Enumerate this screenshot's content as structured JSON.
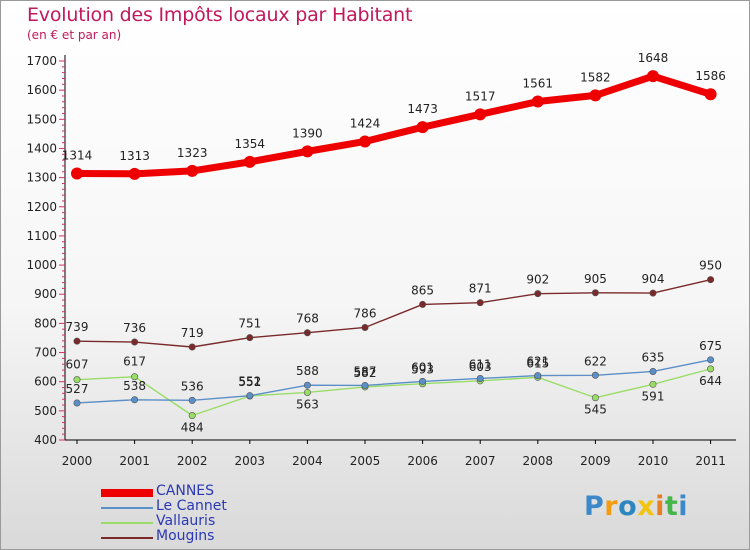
{
  "chart_data": {
    "type": "line",
    "title": "Evolution des Impôts locaux par Habitant",
    "subtitle": "(en € et par an)",
    "xlabel": "",
    "ylabel": "",
    "ylim": [
      400,
      1700
    ],
    "yticks": [
      400,
      500,
      600,
      700,
      800,
      900,
      1000,
      1100,
      1200,
      1300,
      1400,
      1500,
      1600,
      1700
    ],
    "categories": [
      "2000",
      "2001",
      "2002",
      "2003",
      "2004",
      "2005",
      "2006",
      "2007",
      "2008",
      "2009",
      "2010",
      "2011"
    ],
    "series": [
      {
        "name": "CANNES",
        "color": "#ee0000",
        "values": [
          1314,
          1313,
          1323,
          1354,
          1390,
          1424,
          1473,
          1517,
          1561,
          1582,
          1648,
          1586
        ]
      },
      {
        "name": "Le Cannet",
        "color": "#5b8fc8",
        "values": [
          527,
          538,
          536,
          552,
          588,
          587,
          601,
          611,
          621,
          622,
          635,
          675
        ]
      },
      {
        "name": "Vallauris",
        "color": "#99dd66",
        "values": [
          607,
          617,
          484,
          551,
          563,
          582,
          593,
          603,
          615,
          545,
          591,
          644
        ]
      },
      {
        "name": "Mougins",
        "color": "#7a2a2a",
        "values": [
          739,
          736,
          719,
          751,
          768,
          786,
          865,
          871,
          902,
          905,
          904,
          950
        ]
      }
    ],
    "legend": "bottom-left",
    "grid": false
  },
  "logo": {
    "text": "Proxiti",
    "letters": [
      {
        "ch": "P",
        "color": "#3d88c9"
      },
      {
        "ch": "r",
        "color": "#f39c12"
      },
      {
        "ch": "o",
        "color": "#2e86c1"
      },
      {
        "ch": "x",
        "color": "#f1c40f"
      },
      {
        "ch": "i",
        "color": "#e67e22"
      },
      {
        "ch": "t",
        "color": "#45b649"
      },
      {
        "ch": "i",
        "color": "#3d88c9"
      }
    ]
  }
}
